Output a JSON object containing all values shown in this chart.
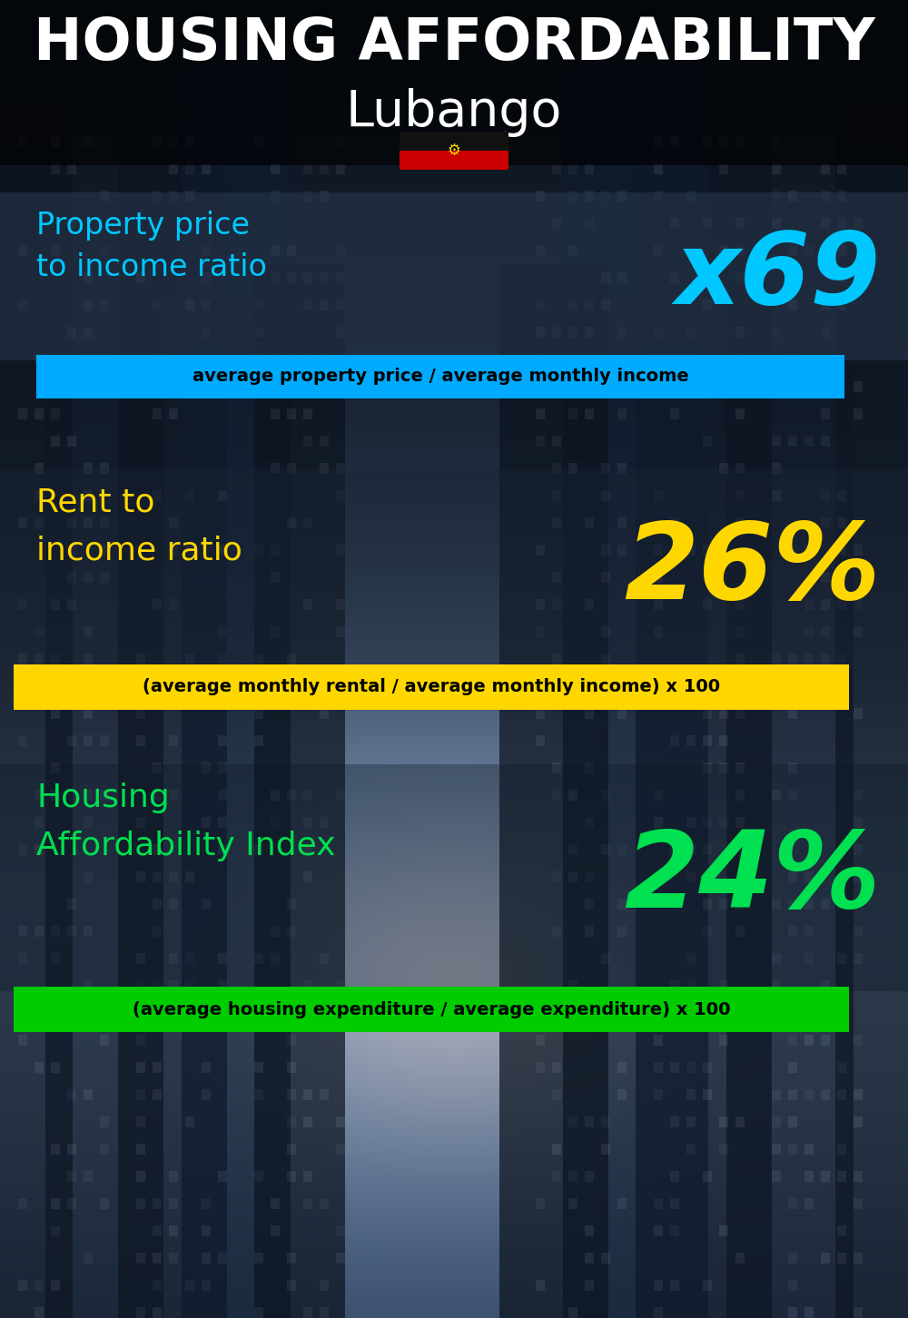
{
  "title_line1": "HOUSING AFFORDABILITY",
  "title_line2": "Lubango",
  "bg_color": "#0a1520",
  "title1_color": "#ffffff",
  "title2_color": "#ffffff",
  "section1_label": "Property price\nto income ratio",
  "section1_value": "x69",
  "section1_label_color": "#00c8ff",
  "section1_value_color": "#00c8ff",
  "section1_note": "average property price / average monthly income",
  "section1_note_bg": "#00aaff",
  "section1_note_color": "#000000",
  "section2_label": "Rent to\nincome ratio",
  "section2_value": "26%",
  "section2_label_color": "#ffd700",
  "section2_value_color": "#ffd700",
  "section2_note": "(average monthly rental / average monthly income) x 100",
  "section2_note_bg": "#ffd700",
  "section2_note_color": "#000000",
  "section3_label": "Housing\nAffordability Index",
  "section3_value": "24%",
  "section3_label_color": "#00e050",
  "section3_value_color": "#00e050",
  "section3_note": "(average housing expenditure / average expenditure) x 100",
  "section3_note_bg": "#00cc00",
  "section3_note_color": "#000000",
  "panel_bg_color": "#1c3050",
  "panel_alpha": 0.5,
  "flag_red": "#cc0000",
  "flag_black": "#111111",
  "flag_emblem": "#ffd700"
}
